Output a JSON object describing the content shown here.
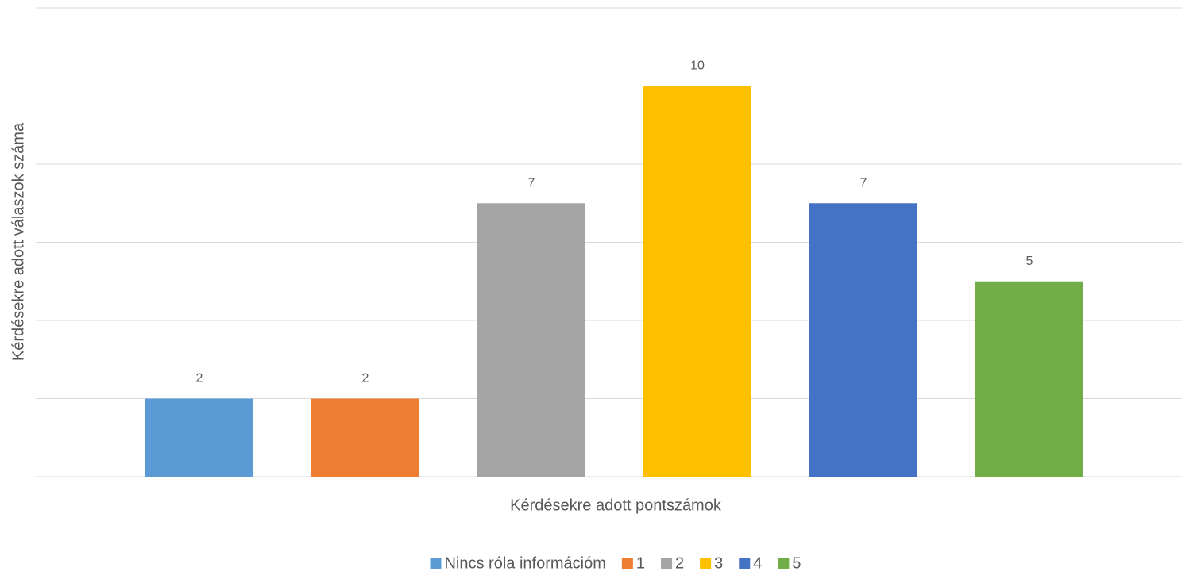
{
  "chart_data": {
    "type": "bar",
    "x_label": "Kérdésekre adott pontszámok",
    "y_label": "Kérdésekre adott válaszok száma",
    "categories": [
      null
    ],
    "series": [
      {
        "name": "Nincs róla információm",
        "color": "#5b9bd5",
        "values": [
          2
        ]
      },
      {
        "name": "1",
        "color": "#ed7d31",
        "values": [
          2
        ]
      },
      {
        "name": "2",
        "color": "#a5a5a5",
        "values": [
          7
        ]
      },
      {
        "name": "3",
        "color": "#ffc000",
        "values": [
          10
        ]
      },
      {
        "name": "4",
        "color": "#4472c4",
        "values": [
          7
        ]
      },
      {
        "name": "5",
        "color": "#70ad47",
        "values": [
          5
        ]
      }
    ],
    "ylim": [
      0,
      12
    ],
    "yticks": [
      0,
      2,
      4,
      6,
      8,
      10,
      12
    ],
    "grid": true,
    "legend": "bottom"
  }
}
